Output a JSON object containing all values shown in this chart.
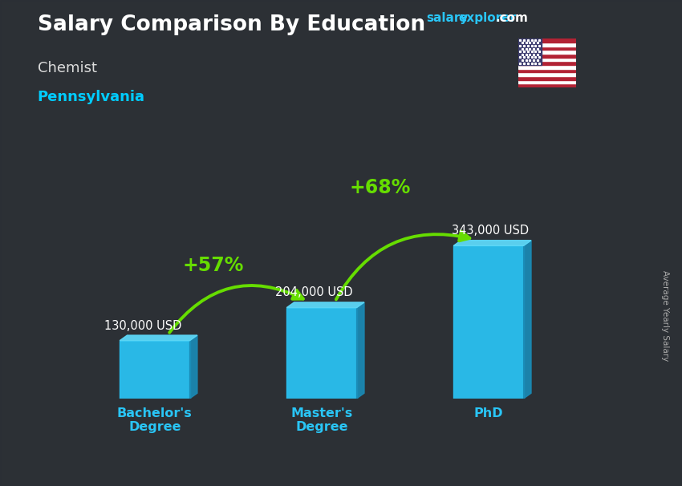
{
  "title": "Salary Comparison By Education",
  "subtitle_job": "Chemist",
  "subtitle_location": "Pennsylvania",
  "categories": [
    "Bachelor's\nDegree",
    "Master's\nDegree",
    "PhD"
  ],
  "values": [
    130000,
    204000,
    343000
  ],
  "value_labels": [
    "130,000 USD",
    "204,000 USD",
    "343,000 USD"
  ],
  "pct_labels": [
    "+57%",
    "+68%"
  ],
  "ylabel": "Average Yearly Salary",
  "bg_color": "#3a3a3a",
  "overlay_color": "#2a2f35",
  "title_color": "#ffffff",
  "subtitle_job_color": "#dddddd",
  "subtitle_location_color": "#00ccff",
  "bar_face_color": "#29c5f6",
  "bar_side_color": "#1a8ab5",
  "bar_top_color": "#5dd8f8",
  "pct_color": "#88ee00",
  "value_label_color": "#ffffff",
  "tick_label_color": "#29c5f6",
  "ylabel_color": "#aaaaaa",
  "website_salary_color": "#29c5f6",
  "website_explorer_color": "#29c5f6",
  "website_com_color": "#ffffff",
  "arrow_color": "#66dd00",
  "figsize": [
    8.5,
    6.06
  ],
  "dpi": 100
}
